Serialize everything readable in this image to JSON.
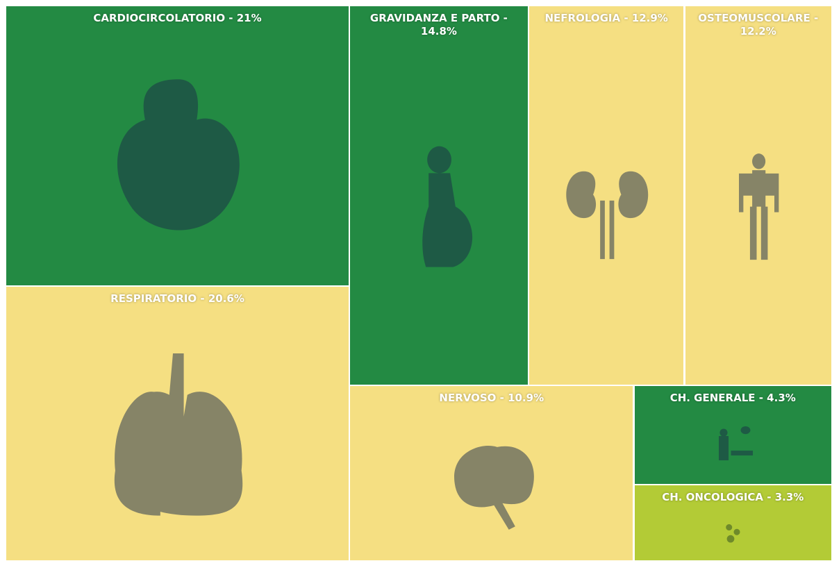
{
  "chart_data": {
    "type": "treemap",
    "values": [
      21,
      20.6,
      14.8,
      12.9,
      12.2,
      10.9,
      4.3,
      3.3
    ],
    "value_labels": [
      "CARDIOCIRCOLATORIO - 21%",
      "RESPIRATORIO - 20.6%",
      "GRAVIDANZA E PARTO - 14.8%",
      "NEFROLOGIA - 12.9%",
      "OSTEOMUSCOLARE - 12.2%",
      "NERVOSO - 10.9%",
      "CH. GENERALE - 4.3%",
      "CH. ONCOLOGICA - 3.3%"
    ],
    "colors": [
      "#238a43",
      "#f5df82",
      "#238a43",
      "#f5df82",
      "#f5df82",
      "#f5df82",
      "#238a43",
      "#b3cb36"
    ]
  }
}
